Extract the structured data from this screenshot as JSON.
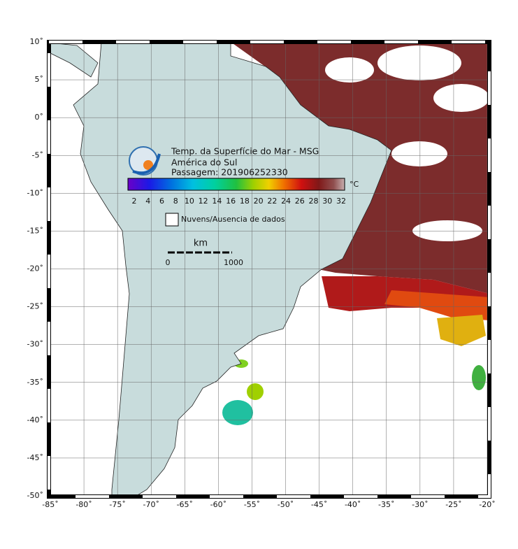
{
  "header": {
    "title": "Temp. da Superfície do Mar - MSG",
    "region": "América do Sul",
    "pass": "Passagem: 201906252330"
  },
  "colorbar": {
    "ticks": [
      "2",
      "4",
      "6",
      "8",
      "10",
      "12",
      "14",
      "16",
      "18",
      "20",
      "22",
      "24",
      "26",
      "28",
      "30",
      "32"
    ],
    "unit": "°C"
  },
  "legend": {
    "label": "Nuvens/Ausencia de dados"
  },
  "scale": {
    "unit": "km",
    "start": "0",
    "end": "1000"
  },
  "axes": {
    "lon": [
      "-85˚",
      "-80˚",
      "-75˚",
      "-70˚",
      "-65˚",
      "-60˚",
      "-55˚",
      "-50˚",
      "-45˚",
      "-40˚",
      "-35˚",
      "-30˚",
      "-25˚",
      "-20˚"
    ],
    "lat": [
      "10˚",
      "5˚",
      "0˚",
      "-5˚",
      "-10˚",
      "-15˚",
      "-20˚",
      "-25˚",
      "-30˚",
      "-35˚",
      "-40˚",
      "-45˚",
      "-50˚"
    ]
  }
}
